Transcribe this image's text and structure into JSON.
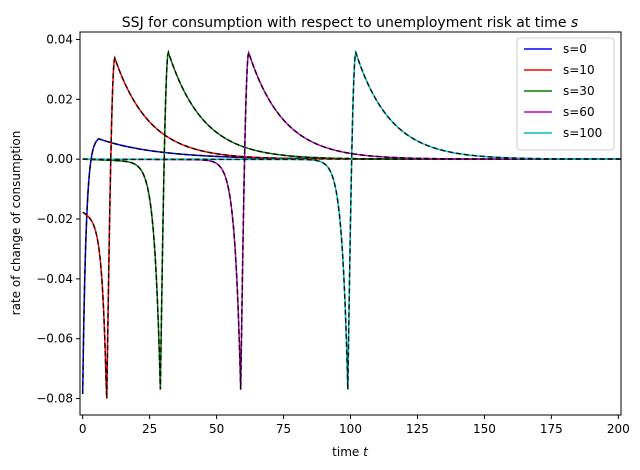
{
  "chart_data": {
    "type": "line",
    "title": "SSJ for consumption with respect to unemployment risk at time s",
    "title_parts": {
      "main": "SSJ for consumption with respect to unemployment risk at time ",
      "symbol": "s"
    },
    "xlabel": "time t",
    "xlabel_parts": {
      "main": "time ",
      "symbol": "t"
    },
    "ylabel": "rate of change of consumption",
    "xlim": [
      -1,
      201
    ],
    "ylim": [
      -0.0855,
      0.0425
    ],
    "x_ticks": [
      0,
      25,
      50,
      75,
      100,
      125,
      150,
      175,
      200
    ],
    "x_tick_labels": [
      "0",
      "25",
      "50",
      "75",
      "100",
      "125",
      "150",
      "175",
      "200"
    ],
    "y_ticks": [
      -0.08,
      -0.06,
      -0.04,
      -0.02,
      0.0,
      0.02,
      0.04
    ],
    "y_tick_labels": [
      "−0.08",
      "−0.06",
      "−0.04",
      "−0.02",
      "0.00",
      "0.02",
      "0.04"
    ],
    "grid": false,
    "legend_position": "top-right",
    "overlay_style": "black dashed line on each series",
    "series": [
      {
        "name": "s=0",
        "color": "#0000ff",
        "s": 0,
        "min": -0.0785,
        "peak": 0.0068,
        "peak_t": 6,
        "pre_slope": 0,
        "tail_tau": 22
      },
      {
        "name": "s=10",
        "color": "#ff0000",
        "s": 10,
        "min": -0.08,
        "peak": 0.0338,
        "peak_t": 12,
        "pre_slope": -0.0175,
        "tail_tau": 13
      },
      {
        "name": "s=30",
        "color": "#008000",
        "s": 30,
        "min": -0.077,
        "peak": 0.0357,
        "peak_t": 32,
        "pre_slope": -0.001,
        "tail_tau": 13
      },
      {
        "name": "s=60",
        "color": "#bf00bf",
        "s": 60,
        "min": -0.077,
        "peak": 0.0356,
        "peak_t": 62,
        "pre_slope": -0.0002,
        "tail_tau": 13
      },
      {
        "name": "s=100",
        "color": "#00bfbf",
        "s": 100,
        "min": -0.077,
        "peak": 0.0356,
        "peak_t": 102,
        "pre_slope": -0.0001,
        "tail_tau": 13
      }
    ]
  }
}
